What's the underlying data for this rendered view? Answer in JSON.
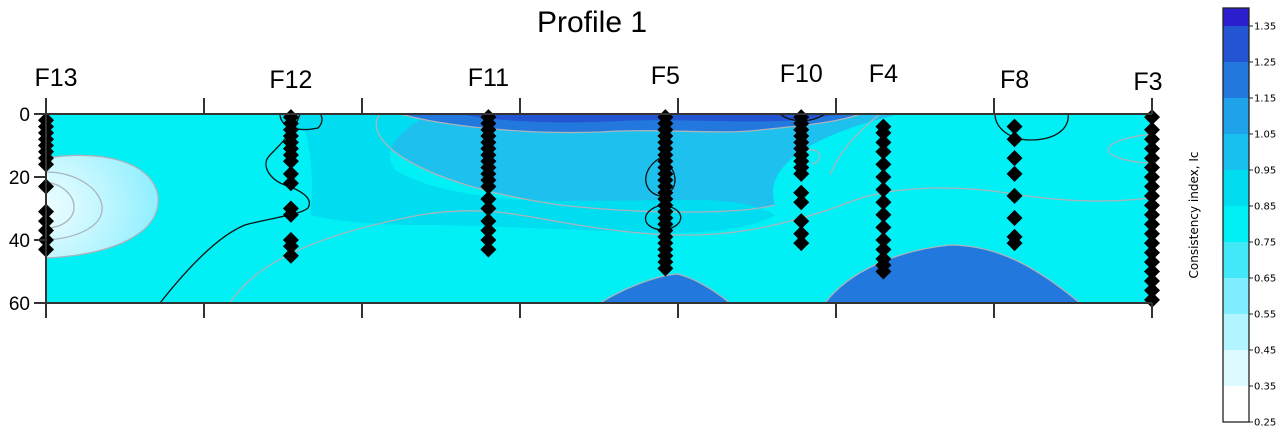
{
  "chart_data": {
    "type": "contour",
    "title": "Profile 1",
    "ylabel": "",
    "ylim": [
      0,
      60
    ],
    "y_reversed": true,
    "y_ticks": [
      0,
      20,
      40,
      60
    ],
    "xlim": [
      0,
      7
    ],
    "boreholes": [
      {
        "name": "F13",
        "x": 0.0,
        "depths": [
          2,
          4,
          6,
          8,
          10,
          12,
          14,
          16,
          23,
          31,
          34,
          37,
          40,
          43
        ]
      },
      {
        "name": "F12",
        "x": 1.55,
        "depths": [
          1,
          3,
          5,
          7,
          9,
          11,
          13,
          15,
          19,
          22,
          30,
          32,
          40,
          42,
          45
        ]
      },
      {
        "name": "F11",
        "x": 2.8,
        "depths": [
          1,
          3,
          5,
          7,
          9,
          11,
          13,
          15,
          17,
          19,
          21,
          23,
          27,
          30,
          34,
          37,
          40,
          43
        ]
      },
      {
        "name": "F5",
        "x": 3.92,
        "depths": [
          1,
          3,
          5,
          7,
          9,
          11,
          13,
          15,
          17,
          19,
          21,
          23,
          25,
          27,
          29,
          31,
          33,
          35,
          37,
          39,
          41,
          43,
          45,
          47,
          49
        ]
      },
      {
        "name": "F10",
        "x": 4.78,
        "depths": [
          1,
          3,
          5,
          7,
          9,
          11,
          13,
          15,
          17,
          19,
          25,
          28,
          34,
          38,
          41
        ]
      },
      {
        "name": "F4",
        "x": 5.3,
        "depths": [
          4,
          6,
          9,
          12,
          16,
          20,
          24,
          28,
          32,
          36,
          40,
          43,
          46,
          48,
          50
        ]
      },
      {
        "name": "F8",
        "x": 6.13,
        "depths": [
          4,
          8,
          14,
          19,
          26,
          33,
          39,
          41
        ]
      },
      {
        "name": "F3",
        "x": 7.0,
        "depths": [
          1,
          5,
          8,
          11,
          14,
          17,
          20,
          23,
          26,
          29,
          32,
          35,
          38,
          41,
          44,
          47,
          50,
          53,
          56,
          59
        ]
      }
    ],
    "colorbar": {
      "label": "Consistency index, Ic",
      "ticks": [
        "0.25",
        "0.35",
        "0.45",
        "0.55",
        "0.65",
        "0.75",
        "0.85",
        "0.95",
        "1.05",
        "1.15",
        "1.25",
        "1.35"
      ],
      "min": 0.25,
      "max": 1.4,
      "colors": [
        "#ffffff",
        "#dcfaff",
        "#b2f4ff",
        "#80edff",
        "#42e8f7",
        "#00f0f5",
        "#00dcf0",
        "#17c0ef",
        "#1ea3ea",
        "#2378dd",
        "#2355d2",
        "#2a1ecf"
      ]
    }
  }
}
